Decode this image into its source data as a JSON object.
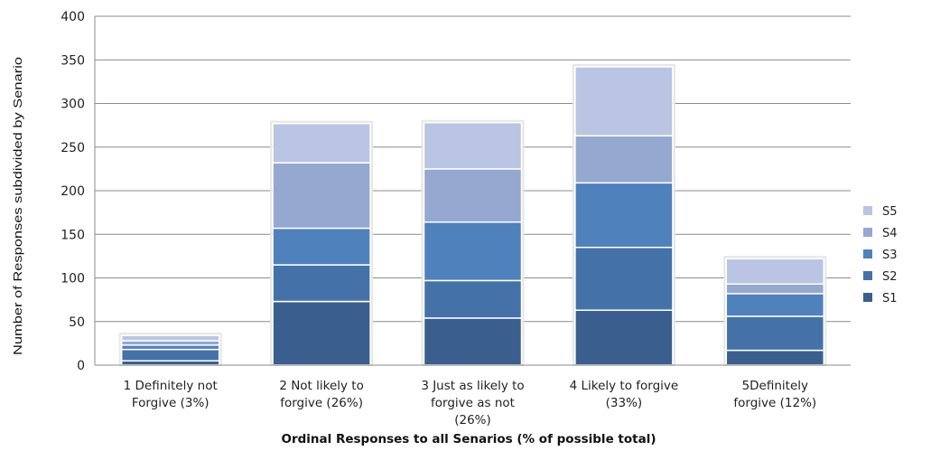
{
  "chart_data": {
    "type": "bar",
    "stacked": true,
    "categories": [
      [
        "1 Definitely not",
        "Forgive (3%)"
      ],
      [
        "2 Not likely to",
        "forgive (26%)"
      ],
      [
        "3 Just as likely to",
        "forgive as not",
        "(26%)"
      ],
      [
        "4 Likely to forgive",
        "(33%)"
      ],
      [
        "5Definitely",
        "forgive (12%)"
      ]
    ],
    "series": [
      {
        "name": "S1",
        "color": "#3A5F8F",
        "values": [
          5,
          73,
          54,
          63,
          17
        ]
      },
      {
        "name": "S2",
        "color": "#4472A8",
        "values": [
          13,
          42,
          43,
          72,
          39
        ]
      },
      {
        "name": "S3",
        "color": "#4F81BD",
        "values": [
          5,
          42,
          67,
          74,
          26
        ]
      },
      {
        "name": "S4",
        "color": "#95A8D0",
        "values": [
          5,
          75,
          61,
          54,
          11
        ]
      },
      {
        "name": "S5",
        "color": "#B9C5E2",
        "values": [
          6,
          45,
          53,
          79,
          29
        ]
      }
    ],
    "xlabel": "Ordinal Responses to all Senarios (% of possible total)",
    "ylabel": "Number of Responses subdivided by Senario",
    "ylim": [
      0,
      400
    ],
    "yticks": [
      0,
      50,
      100,
      150,
      200,
      250,
      300,
      350,
      400
    ],
    "grid": true,
    "legend_position": "right"
  }
}
